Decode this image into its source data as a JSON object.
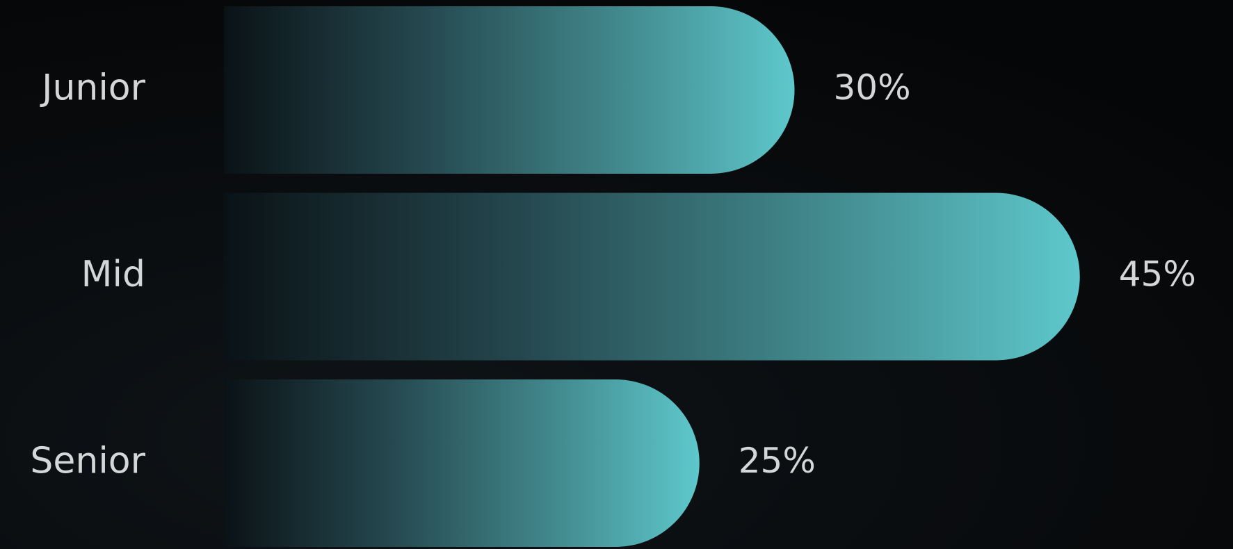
{
  "chart_data": {
    "type": "bar",
    "orientation": "horizontal",
    "categories": [
      "Junior",
      "Mid",
      "Senior"
    ],
    "values": [
      30,
      45,
      25
    ],
    "value_labels": [
      "30%",
      "45%",
      "25%"
    ],
    "color": "#5ec8cc"
  }
}
